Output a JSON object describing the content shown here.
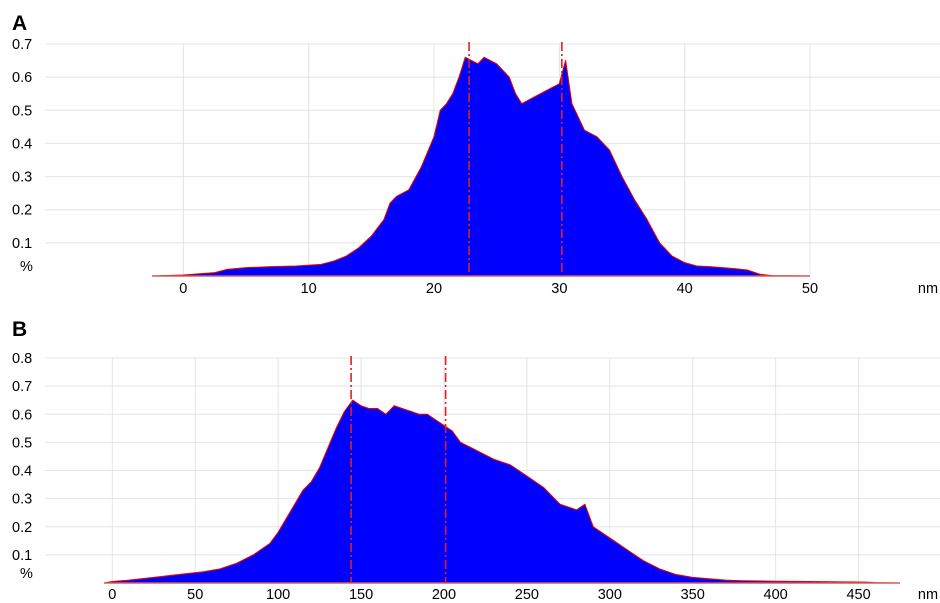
{
  "chart_data": [
    {
      "type": "area",
      "panel_label": "A",
      "xlabel": "nm",
      "ylabel": "%",
      "xlim": [
        -2.5,
        50
      ],
      "ylim": [
        0,
        0.7
      ],
      "x_ticks": [
        "0",
        "10",
        "20",
        "30",
        "40",
        "50"
      ],
      "y_ticks": [
        "0.7",
        "0.6",
        "0.5",
        "0.4",
        "0.3",
        "0.2",
        "0.1"
      ],
      "grid": true,
      "fill_color": "#0000ff",
      "edge_color": "#e00000",
      "peak_markers": [
        22.8,
        30.2
      ],
      "series": [
        {
          "x": [
            -2.5,
            0,
            2.5,
            3.5,
            5,
            7,
            9,
            11,
            12,
            13,
            14,
            15,
            16,
            16.5,
            17,
            18,
            19,
            20,
            20.5,
            21,
            21.5,
            22,
            22.5,
            23,
            23.5,
            24,
            25,
            26,
            26.5,
            27,
            28,
            29,
            30,
            30.5,
            31,
            32,
            33,
            34,
            35,
            36,
            37,
            38,
            39,
            40,
            41,
            42,
            43,
            44,
            45,
            46,
            47,
            50
          ],
          "y": [
            0,
            0.003,
            0.01,
            0.02,
            0.025,
            0.028,
            0.03,
            0.035,
            0.045,
            0.06,
            0.085,
            0.12,
            0.17,
            0.22,
            0.24,
            0.26,
            0.33,
            0.42,
            0.5,
            0.52,
            0.55,
            0.6,
            0.66,
            0.65,
            0.64,
            0.66,
            0.64,
            0.6,
            0.55,
            0.52,
            0.54,
            0.56,
            0.58,
            0.65,
            0.52,
            0.44,
            0.42,
            0.38,
            0.3,
            0.23,
            0.17,
            0.1,
            0.06,
            0.04,
            0.03,
            0.028,
            0.025,
            0.022,
            0.018,
            0.005,
            0.001,
            0
          ]
        }
      ]
    },
    {
      "type": "area",
      "panel_label": "B",
      "xlabel": "nm",
      "ylabel": "%",
      "xlim": [
        -5,
        475
      ],
      "ylim": [
        0,
        0.8
      ],
      "x_ticks": [
        "0",
        "50",
        "100",
        "150",
        "200",
        "250",
        "300",
        "350",
        "400",
        "450"
      ],
      "y_ticks": [
        "0.8",
        "0.7",
        "0.6",
        "0.5",
        "0.4",
        "0.3",
        "0.2",
        "0.1"
      ],
      "grid": true,
      "fill_color": "#0000ff",
      "edge_color": "#e00000",
      "peak_markers": [
        144,
        201
      ],
      "series": [
        {
          "x": [
            -5,
            0,
            10,
            25,
            40,
            55,
            65,
            75,
            85,
            95,
            100,
            105,
            110,
            115,
            120,
            125,
            130,
            135,
            140,
            145,
            150,
            155,
            160,
            165,
            170,
            175,
            180,
            185,
            190,
            195,
            200,
            205,
            210,
            220,
            230,
            240,
            250,
            260,
            270,
            280,
            285,
            290,
            300,
            310,
            320,
            330,
            340,
            350,
            360,
            370,
            380,
            400,
            420,
            440,
            455,
            460,
            475
          ],
          "y": [
            0,
            0.005,
            0.01,
            0.02,
            0.03,
            0.04,
            0.05,
            0.07,
            0.1,
            0.14,
            0.18,
            0.23,
            0.28,
            0.33,
            0.36,
            0.41,
            0.48,
            0.55,
            0.61,
            0.65,
            0.63,
            0.62,
            0.62,
            0.6,
            0.63,
            0.62,
            0.61,
            0.6,
            0.6,
            0.58,
            0.56,
            0.54,
            0.5,
            0.47,
            0.44,
            0.42,
            0.38,
            0.34,
            0.28,
            0.26,
            0.28,
            0.2,
            0.16,
            0.12,
            0.08,
            0.05,
            0.03,
            0.02,
            0.015,
            0.01,
            0.008,
            0.006,
            0.005,
            0.004,
            0.003,
            0.001,
            0
          ]
        }
      ]
    }
  ]
}
